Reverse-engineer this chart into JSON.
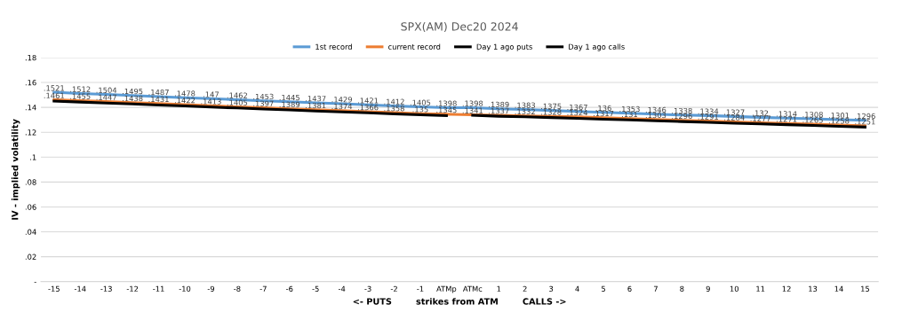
{
  "chart_data": {
    "type": "line",
    "title": "SPX(AM) Dec20 2024",
    "xlabel": "<- PUTS        strikes from ATM        CALLS ->",
    "ylabel": "IV - implied volatility",
    "categories": [
      "-15",
      "-14",
      "-13",
      "-12",
      "-11",
      "-10",
      "-9",
      "-8",
      "-7",
      "-6",
      "-5",
      "-4",
      "-3",
      "-2",
      "-1",
      "ATMp",
      "ATMc",
      "1",
      "2",
      "3",
      "4",
      "5",
      "6",
      "7",
      "8",
      "9",
      "10",
      "11",
      "12",
      "13",
      "14",
      "15"
    ],
    "ylim": [
      0,
      0.18
    ],
    "yticks": [
      {
        "value": 0,
        "label": "-"
      },
      {
        "value": 0.02,
        "label": ".02"
      },
      {
        "value": 0.04,
        "label": ".04"
      },
      {
        "value": 0.06,
        "label": ".06"
      },
      {
        "value": 0.08,
        "label": ".08"
      },
      {
        "value": 0.1,
        "label": ".1"
      },
      {
        "value": 0.12,
        "label": ".12"
      },
      {
        "value": 0.14,
        "label": ".14"
      },
      {
        "value": 0.16,
        "label": ".16"
      },
      {
        "value": 0.18,
        "label": ".18"
      }
    ],
    "grid": "y",
    "legend": "top",
    "marker": "none",
    "line_style": "solid",
    "series": [
      {
        "name": "1st record",
        "color": "#5b9bd5",
        "values": [
          0.1521,
          0.1512,
          0.1504,
          0.1495,
          0.1487,
          0.1478,
          0.147,
          0.1462,
          0.1453,
          0.1445,
          0.1437,
          0.1429,
          0.1421,
          0.1412,
          0.1405,
          0.1398,
          0.1398,
          0.1389,
          0.1383,
          0.1375,
          0.1367,
          0.136,
          0.1353,
          0.1346,
          0.1338,
          0.1334,
          0.1327,
          0.132,
          0.1314,
          0.1308,
          0.1301,
          0.1296
        ],
        "value_labels": [
          ".1521",
          ".1512",
          ".1504",
          ".1495",
          ".1487",
          ".1478",
          ".147",
          ".1462",
          ".1453",
          ".1445",
          ".1437",
          ".1429",
          ".1421",
          ".1412",
          ".1405",
          ".1398",
          ".1398",
          ".1389",
          ".1383",
          ".1375",
          ".1367",
          ".136",
          ".1353",
          ".1346",
          ".1338",
          ".1334",
          ".1327",
          ".132",
          ".1314",
          ".1308",
          ".1301",
          ".1296"
        ]
      },
      {
        "name": "current record",
        "color": "#ed7d31",
        "values": [
          0.1461,
          0.1455,
          0.1447,
          0.1438,
          0.1431,
          0.1422,
          0.1413,
          0.1405,
          0.1397,
          0.1389,
          0.1381,
          0.1374,
          0.1366,
          0.1358,
          0.135,
          0.1345,
          0.1341,
          0.1337,
          0.1332,
          0.1328,
          0.1324,
          0.1317,
          0.131,
          0.1303,
          0.1296,
          0.1291,
          0.1284,
          0.1277,
          0.1271,
          0.1265,
          0.1258,
          0.1251
        ],
        "value_labels": [
          ".1461",
          ".1455",
          ".1447",
          ".1438",
          ".1431",
          ".1422",
          ".1413",
          ".1405",
          ".1397",
          ".1389",
          ".1381",
          ".1374",
          ".1366",
          ".1358",
          ".135",
          ".1345",
          ".1341",
          ".1337",
          ".1332",
          ".1328",
          ".1324",
          ".1317",
          ".131",
          ".1303",
          ".1296",
          ".1291",
          ".1284",
          ".1277",
          ".1271",
          ".1265",
          ".1258",
          ".1251"
        ]
      },
      {
        "name": "Day 1 ago puts",
        "color": "#000000",
        "values": [
          0.145,
          0.1443,
          0.1435,
          0.1427,
          0.1419,
          0.1411,
          0.1403,
          0.1395,
          0.1387,
          0.1379,
          0.1371,
          0.1364,
          0.1356,
          0.1348,
          0.134,
          0.1333,
          null,
          null,
          null,
          null,
          null,
          null,
          null,
          null,
          null,
          null,
          null,
          null,
          null,
          null,
          null,
          null
        ]
      },
      {
        "name": "Day 1 ago calls",
        "color": "#000000",
        "values": [
          null,
          null,
          null,
          null,
          null,
          null,
          null,
          null,
          null,
          null,
          null,
          null,
          null,
          null,
          null,
          null,
          0.1336,
          0.1329,
          0.1324,
          0.1318,
          0.1312,
          0.1305,
          0.1299,
          0.1292,
          0.1286,
          0.128,
          0.1273,
          0.1267,
          0.1261,
          0.1255,
          0.1248,
          0.1242
        ]
      }
    ]
  }
}
